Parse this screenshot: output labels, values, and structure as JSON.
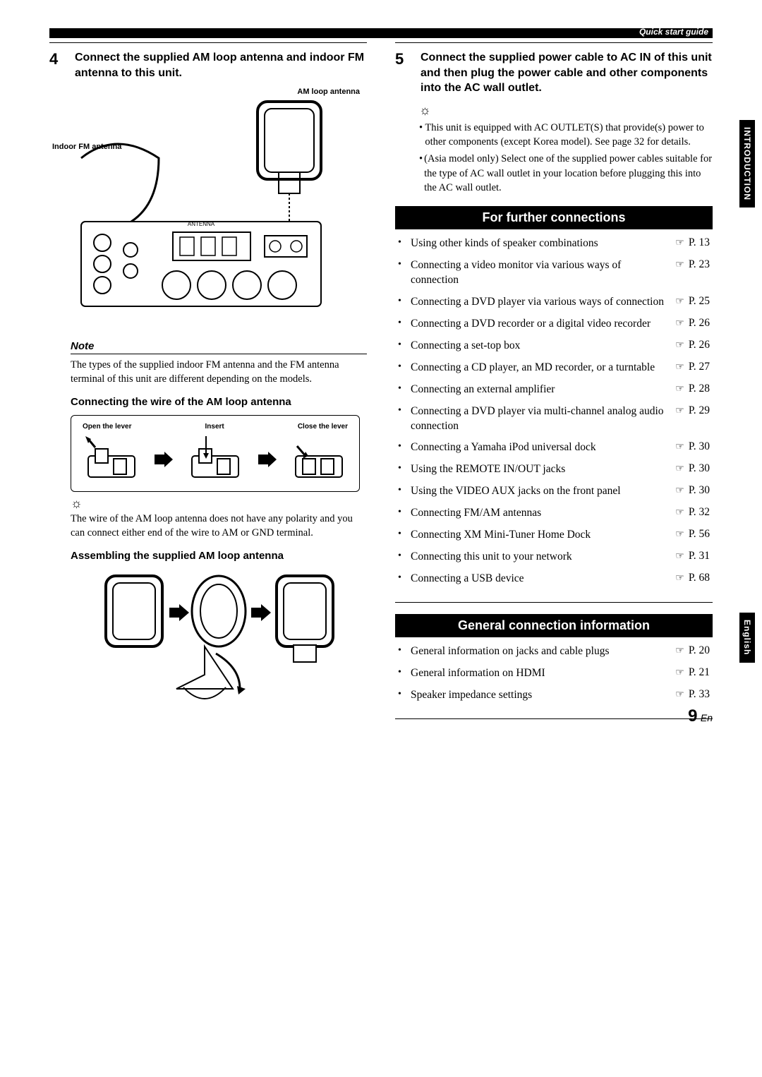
{
  "header": {
    "guide_label": "Quick start guide"
  },
  "sideTabs": {
    "intro": "INTRODUCTION",
    "lang": "English"
  },
  "left": {
    "step_num": "4",
    "step_text": "Connect the supplied AM loop antenna and indoor FM antenna to this unit.",
    "label_am": "AM loop antenna",
    "label_fm": "Indoor FM antenna",
    "note_head": "Note",
    "note_body": "The types of the supplied indoor FM antenna and the FM antenna terminal of this unit are different depending on the models.",
    "sub1": "Connecting the wire of the AM loop antenna",
    "wire_labels": {
      "a": "Open the lever",
      "b": "Insert",
      "c": "Close the lever"
    },
    "tip_icon": "☼",
    "tip_body": "The wire of the AM loop antenna does not have any polarity and you can connect either end of the wire to AM or GND terminal.",
    "sub2": "Assembling the supplied AM loop antenna"
  },
  "right": {
    "step_num": "5",
    "step_text": "Connect the supplied power cable to AC IN of this unit and then plug the power cable and other components into the AC wall outlet.",
    "tip_icon": "☼",
    "tips": [
      "This unit is equipped with AC OUTLET(S) that provide(s) power to other components (except Korea model). See page 32 for details.",
      "(Asia model only) Select one of the supplied power cables suitable for the type of AC wall outlet in your location before plugging this into the AC wall outlet."
    ],
    "section1": "For further connections",
    "connections": [
      {
        "text": "Using other kinds of speaker combinations",
        "page": "P. 13"
      },
      {
        "text": "Connecting a video monitor via various ways of connection",
        "page": "P. 23"
      },
      {
        "text": "Connecting a DVD player via various ways of connection",
        "page": "P. 25"
      },
      {
        "text": "Connecting a DVD recorder or a digital video recorder",
        "page": "P. 26"
      },
      {
        "text": "Connecting a set-top box",
        "page": "P. 26"
      },
      {
        "text": "Connecting a CD player, an MD recorder, or a turntable",
        "page": "P. 27"
      },
      {
        "text": "Connecting an external amplifier",
        "page": "P. 28"
      },
      {
        "text": "Connecting a DVD player via multi-channel analog audio connection",
        "page": "P. 29"
      },
      {
        "text": "Connecting a Yamaha iPod universal dock",
        "page": "P. 30"
      },
      {
        "text": "Using the REMOTE IN/OUT jacks",
        "page": "P. 30"
      },
      {
        "text": "Using the VIDEO AUX jacks on the front panel",
        "page": "P. 30"
      },
      {
        "text": "Connecting FM/AM antennas",
        "page": "P. 32"
      },
      {
        "text": "Connecting XM Mini-Tuner Home Dock",
        "page": "P. 56"
      },
      {
        "text": "Connecting this unit to your network",
        "page": "P. 31"
      },
      {
        "text": "Connecting a USB device",
        "page": "P. 68"
      }
    ],
    "section2": "General connection information",
    "general": [
      {
        "text": "General information on jacks and cable plugs",
        "page": "P. 20"
      },
      {
        "text": "General information on HDMI",
        "page": "P. 21"
      },
      {
        "text": "Speaker impedance settings",
        "page": "P. 33"
      }
    ],
    "pointer": "☞"
  },
  "footer": {
    "page_big": "9",
    "page_small": "En"
  }
}
